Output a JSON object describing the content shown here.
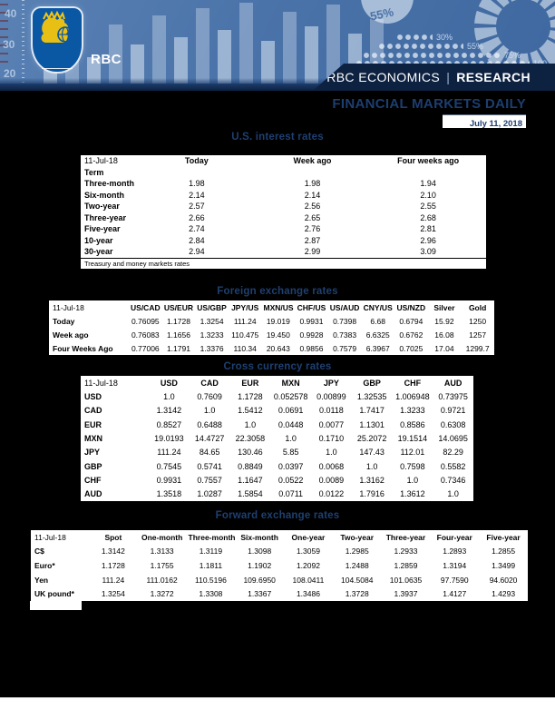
{
  "header": {
    "brand": "RBC",
    "banner": {
      "left": "RBC ECONOMICS",
      "separator": "|",
      "right": "RESEARCH"
    },
    "title": "FINANCIAL MARKETS DAILY",
    "date": "July 11, 2018",
    "decor": {
      "axis_labels": [
        "40",
        "30",
        "20"
      ],
      "pie_label": "55%",
      "dot_labels": [
        "30%",
        "55%",
        "75%",
        "100"
      ]
    }
  },
  "sections": [
    {
      "title": "U.S. interest rates",
      "table": {
        "header": [
          "11-Jul-18",
          "Today",
          "Week ago",
          "Four weeks ago"
        ],
        "subheader": "Term",
        "rows": [
          [
            "Three-month",
            "1.98",
            "1.98",
            "1.94"
          ],
          [
            "Six-month",
            "2.14",
            "2.14",
            "2.10"
          ],
          [
            "Two-year",
            "2.57",
            "2.56",
            "2.55"
          ],
          [
            "Three-year",
            "2.66",
            "2.65",
            "2.68"
          ],
          [
            "Five-year",
            "2.74",
            "2.76",
            "2.81"
          ],
          [
            "10-year",
            "2.84",
            "2.87",
            "2.96"
          ],
          [
            "30-year",
            "2.94",
            "2.99",
            "3.09"
          ]
        ],
        "footnote": "Treasury and money markets rates"
      }
    },
    {
      "title": "Foreign exchange rates",
      "table": {
        "header": [
          "11-Jul-18",
          "US/CAD",
          "US/EUR",
          "US/GBP",
          "JPY/US",
          "MXN/US",
          "CHF/US",
          "US/AUD",
          "CNY/US",
          "US/NZD",
          "Silver",
          "Gold"
        ],
        "rows": [
          [
            "Today",
            "0.76095",
            "1.1728",
            "1.3254",
            "111.24",
            "19.019",
            "0.9931",
            "0.7398",
            "6.68",
            "0.6794",
            "15.92",
            "1250"
          ],
          [
            "Week ago",
            "0.76083",
            "1.1656",
            "1.3233",
            "110.475",
            "19.450",
            "0.9928",
            "0.7383",
            "6.6325",
            "0.6762",
            "16.08",
            "1257"
          ],
          [
            "Four Weeks Ago",
            "0.77006",
            "1.1791",
            "1.3376",
            "110.34",
            "20.643",
            "0.9856",
            "0.7579",
            "6.3967",
            "0.7025",
            "17.04",
            "1299.7"
          ]
        ]
      }
    },
    {
      "title": "Cross currency rates",
      "table": {
        "header": [
          "11-Jul-18",
          "USD",
          "CAD",
          "EUR",
          "MXN",
          "JPY",
          "GBP",
          "CHF",
          "AUD"
        ],
        "rows": [
          [
            "USD",
            "1.0",
            "0.7609",
            "1.1728",
            "0.052578",
            "0.00899",
            "1.32535",
            "1.006948",
            "0.73975"
          ],
          [
            "CAD",
            "1.3142",
            "1.0",
            "1.5412",
            "0.0691",
            "0.0118",
            "1.7417",
            "1.3233",
            "0.9721"
          ],
          [
            "EUR",
            "0.8527",
            "0.6488",
            "1.0",
            "0.0448",
            "0.0077",
            "1.1301",
            "0.8586",
            "0.6308"
          ],
          [
            "MXN",
            "19.0193",
            "14.4727",
            "22.3058",
            "1.0",
            "0.1710",
            "25.2072",
            "19.1514",
            "14.0695"
          ],
          [
            "JPY",
            "111.24",
            "84.65",
            "130.46",
            "5.85",
            "1.0",
            "147.43",
            "112.01",
            "82.29"
          ],
          [
            "GBP",
            "0.7545",
            "0.5741",
            "0.8849",
            "0.0397",
            "0.0068",
            "1.0",
            "0.7598",
            "0.5582"
          ],
          [
            "CHF",
            "0.9931",
            "0.7557",
            "1.1647",
            "0.0522",
            "0.0089",
            "1.3162",
            "1.0",
            "0.7346"
          ],
          [
            "AUD",
            "1.3518",
            "1.0287",
            "1.5854",
            "0.0711",
            "0.0122",
            "1.7916",
            "1.3612",
            "1.0"
          ]
        ]
      }
    },
    {
      "title": "Forward exchange rates",
      "table": {
        "header": [
          "11-Jul-18",
          "Spot",
          "One-month",
          "Three-month",
          "Six-month",
          "One-year",
          "Two-year",
          "Three-year",
          "Four-year",
          "Five-year"
        ],
        "rows": [
          [
            "C$",
            "1.3142",
            "1.3133",
            "1.3119",
            "1.3098",
            "1.3059",
            "1.2985",
            "1.2933",
            "1.2893",
            "1.2855"
          ],
          [
            "Euro*",
            "1.1728",
            "1.1755",
            "1.1811",
            "1.1902",
            "1.2092",
            "1.2488",
            "1.2859",
            "1.3194",
            "1.3499"
          ],
          [
            "Yen",
            "111.24",
            "111.0162",
            "110.5196",
            "109.6950",
            "108.0411",
            "104.5084",
            "101.0635",
            "97.7590",
            "94.6020"
          ],
          [
            "UK pound*",
            "1.3254",
            "1.3272",
            "1.3308",
            "1.3367",
            "1.3486",
            "1.3728",
            "1.3937",
            "1.4127",
            "1.4293"
          ]
        ]
      }
    }
  ],
  "colors": {
    "accent_navy": "#0d2140",
    "title_blue": "#1e4071",
    "hero_blue": "#4a73a9",
    "logo_blue": "#0a57a4",
    "logo_gold": "#f3c50e"
  }
}
